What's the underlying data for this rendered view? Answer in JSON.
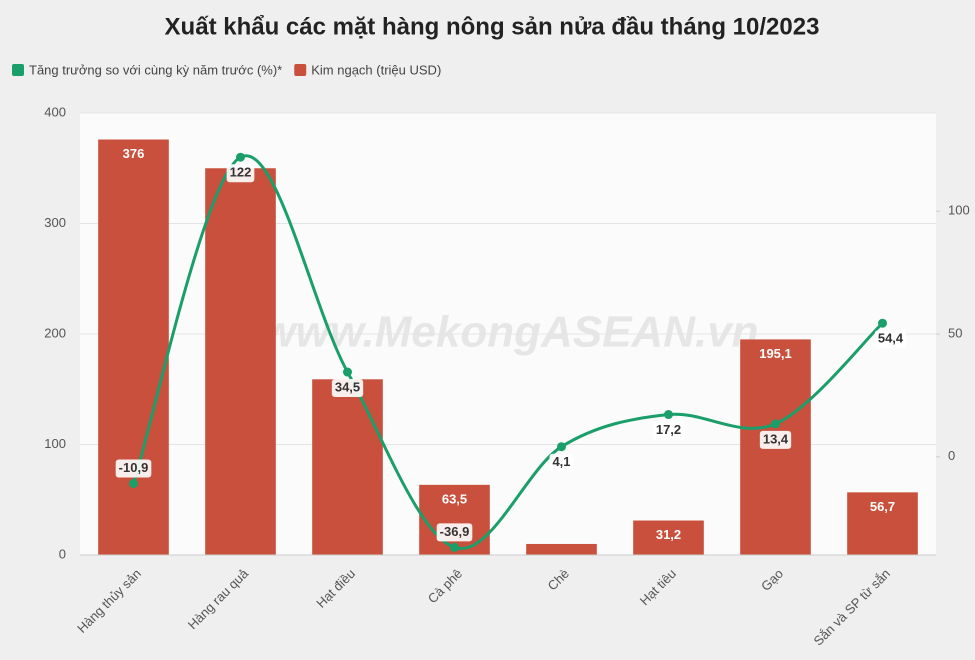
{
  "chart_data": {
    "type": "bar_line",
    "title": "Xuất khẩu các mặt hàng nông sản nửa đầu tháng 10/2023",
    "watermark": "www.MekongASEAN.vn",
    "categories": [
      "Hàng thủy sản",
      "Hàng rau quả",
      "Hạt điều",
      "Cà phê",
      "Chè",
      "Hạt tiêu",
      "Gạo",
      "Sắn và SP từ sắn"
    ],
    "series": [
      {
        "name": "Tăng trưởng so với cùng kỳ năm trước (%)*",
        "type": "line",
        "axis": "y2",
        "color": "#1a9e6a",
        "values": [
          -10.9,
          122,
          34.5,
          -36.9,
          4.1,
          17.2,
          13.4,
          54.4
        ],
        "value_labels": [
          "-10,9",
          "122",
          "34,5",
          "-36,9",
          "4,1",
          "17,2",
          "13,4",
          "54,4"
        ]
      },
      {
        "name": "Kim ngạch (triệu USD)",
        "type": "bar",
        "axis": "y",
        "color": "#c9503c",
        "values": [
          376,
          350,
          159,
          63.5,
          10,
          31.2,
          195.1,
          56.7
        ],
        "value_labels": [
          "376",
          null,
          null,
          "63,5",
          null,
          "31,2",
          "195,1",
          "56,7"
        ]
      }
    ],
    "ylim": [
      0,
      400
    ],
    "yticks": [
      0,
      100,
      200,
      300,
      400
    ],
    "y2lim": [
      -40,
      140
    ],
    "y2ticks": [
      0,
      50,
      100
    ],
    "grid": true,
    "legend": "top-left"
  }
}
